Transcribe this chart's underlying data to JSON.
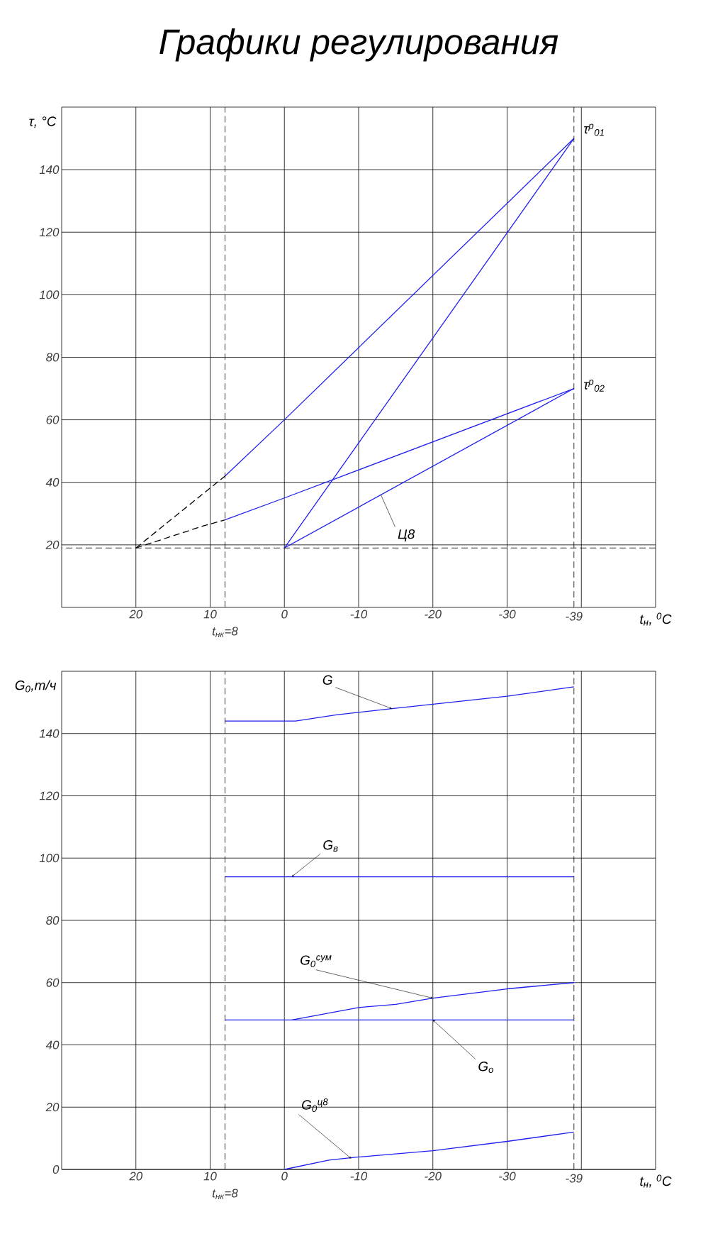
{
  "chart_data": [
    {
      "type": "line",
      "title": "Графики регулирования",
      "xlabel": "t$_{н}$, $^{0}$C",
      "ylabel": "τ, °C",
      "xlim": [
        30,
        -50
      ],
      "ylim": [
        0,
        160
      ],
      "xticks": [
        20,
        10,
        0,
        -10,
        -20,
        -30,
        {
          "value": -40,
          "label": null
        }
      ],
      "yticks": [
        20,
        40,
        60,
        80,
        100,
        120,
        140
      ],
      "grid": true,
      "series": [
        {
          "color": "#1f1fef",
          "x": [
            8,
            0,
            -39
          ],
          "values": [
            42,
            60,
            150
          ]
        },
        {
          "color": "#1f1fef",
          "x": [
            8,
            0,
            -39
          ],
          "values": [
            28,
            35,
            70
          ]
        },
        {
          "color": "#1f1fef",
          "x": [
            0,
            -39
          ],
          "values": [
            19,
            150
          ]
        },
        {
          "color": "#1f1fef",
          "x": [
            0,
            -39
          ],
          "values": [
            19,
            70
          ]
        },
        {
          "color": "#000000",
          "line_style": "dashed",
          "x": [
            20,
            8
          ],
          "values": [
            19,
            42
          ]
        },
        {
          "color": "#000000",
          "line_style": "dashed",
          "x": [
            20,
            11,
            8
          ],
          "values": [
            19,
            26,
            28
          ]
        }
      ],
      "ref_lines": [
        {
          "axis": "x",
          "value": 8,
          "label": "t$_{нк}$=8",
          "line_style": "dashed"
        },
        {
          "axis": "x",
          "value": -39,
          "label": "-39",
          "line_style": "dashed"
        },
        {
          "axis": "y",
          "value": 19,
          "line_style": "dashed"
        }
      ],
      "annotations": [
        {
          "text": "τ$^{р}$$_{01}$",
          "x": -39,
          "y": 150
        },
        {
          "text": "τ$^{р}$$_{02}$",
          "x": -39,
          "y": 70
        },
        {
          "text": "Ц8",
          "x": -13,
          "y": 36
        }
      ]
    },
    {
      "type": "line",
      "xlabel": "t$_{н}$, $^{0}$C",
      "ylabel": "G$_{0}$,т/ч",
      "xlim": [
        30,
        -50
      ],
      "ylim": [
        0,
        160
      ],
      "xticks": [
        20,
        10,
        0,
        -10,
        -20,
        -30,
        {
          "value": -40,
          "label": null
        }
      ],
      "yticks": [
        0,
        20,
        40,
        60,
        80,
        100,
        120,
        140
      ],
      "grid": true,
      "series": [
        {
          "color": "#1f1fef",
          "x": [
            8,
            -1.5,
            -7,
            -14.5,
            -30,
            -39
          ],
          "values": [
            144,
            144,
            146,
            148,
            152,
            155
          ]
        },
        {
          "color": "#1f1fef",
          "x": [
            8,
            -39
          ],
          "values": [
            94,
            94
          ]
        },
        {
          "color": "#1f1fef",
          "x": [
            -1,
            -10,
            -15,
            -20,
            -30,
            -39
          ],
          "values": [
            48,
            52,
            53,
            55,
            58,
            60
          ]
        },
        {
          "color": "#1f1fef",
          "x": [
            8,
            -39
          ],
          "values": [
            48,
            48
          ]
        },
        {
          "color": "#1f1fef",
          "x": [
            0,
            -6,
            -10,
            -15,
            -20,
            -30,
            -39
          ],
          "values": [
            0,
            3,
            4,
            5,
            6,
            9,
            12
          ]
        }
      ],
      "ref_lines": [
        {
          "axis": "x",
          "value": 8,
          "label": "t$_{нк}$=8",
          "line_style": "dashed"
        },
        {
          "axis": "x",
          "value": -39,
          "label": "-39",
          "line_style": "dashed"
        }
      ],
      "annotations": [
        {
          "text": "G",
          "x": -14.5,
          "y": 148
        },
        {
          "text": "G$_{в}$",
          "x": -1,
          "y": 94
        },
        {
          "text": "G$_{0}$$^{сум}$",
          "x": -20,
          "y": 55
        },
        {
          "text": "G$_{о}$",
          "x": -20,
          "y": 48
        },
        {
          "text": "G$_{0}$$^{ц8}$",
          "x": -9,
          "y": 3.5
        }
      ]
    }
  ]
}
